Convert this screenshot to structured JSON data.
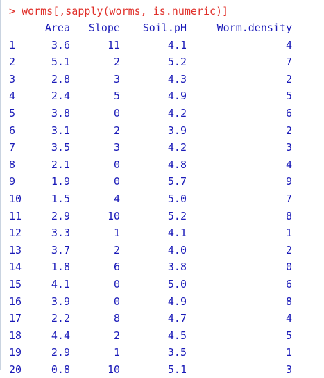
{
  "console": {
    "prompt": ">",
    "command": "worms[,sapply(worms, is.numeric)]",
    "prompt_color": "#e0302a",
    "output_color": "#1a1ab8"
  },
  "table": {
    "columns": [
      "Area",
      "Slope",
      "Soil.pH",
      "Worm.density"
    ],
    "rows": [
      {
        "name": "1",
        "values": [
          "3.6",
          "11",
          "4.1",
          "4"
        ]
      },
      {
        "name": "2",
        "values": [
          "5.1",
          "2",
          "5.2",
          "7"
        ]
      },
      {
        "name": "3",
        "values": [
          "2.8",
          "3",
          "4.3",
          "2"
        ]
      },
      {
        "name": "4",
        "values": [
          "2.4",
          "5",
          "4.9",
          "5"
        ]
      },
      {
        "name": "5",
        "values": [
          "3.8",
          "0",
          "4.2",
          "6"
        ]
      },
      {
        "name": "6",
        "values": [
          "3.1",
          "2",
          "3.9",
          "2"
        ]
      },
      {
        "name": "7",
        "values": [
          "3.5",
          "3",
          "4.2",
          "3"
        ]
      },
      {
        "name": "8",
        "values": [
          "2.1",
          "0",
          "4.8",
          "4"
        ]
      },
      {
        "name": "9",
        "values": [
          "1.9",
          "0",
          "5.7",
          "9"
        ]
      },
      {
        "name": "10",
        "values": [
          "1.5",
          "4",
          "5.0",
          "7"
        ]
      },
      {
        "name": "11",
        "values": [
          "2.9",
          "10",
          "5.2",
          "8"
        ]
      },
      {
        "name": "12",
        "values": [
          "3.3",
          "1",
          "4.1",
          "1"
        ]
      },
      {
        "name": "13",
        "values": [
          "3.7",
          "2",
          "4.0",
          "2"
        ]
      },
      {
        "name": "14",
        "values": [
          "1.8",
          "6",
          "3.8",
          "0"
        ]
      },
      {
        "name": "15",
        "values": [
          "4.1",
          "0",
          "5.0",
          "6"
        ]
      },
      {
        "name": "16",
        "values": [
          "3.9",
          "0",
          "4.9",
          "8"
        ]
      },
      {
        "name": "17",
        "values": [
          "2.2",
          "8",
          "4.7",
          "4"
        ]
      },
      {
        "name": "18",
        "values": [
          "4.4",
          "2",
          "4.5",
          "5"
        ]
      },
      {
        "name": "19",
        "values": [
          "2.9",
          "1",
          "3.5",
          "1"
        ]
      },
      {
        "name": "20",
        "values": [
          "0.8",
          "10",
          "5.1",
          "3"
        ]
      }
    ]
  }
}
